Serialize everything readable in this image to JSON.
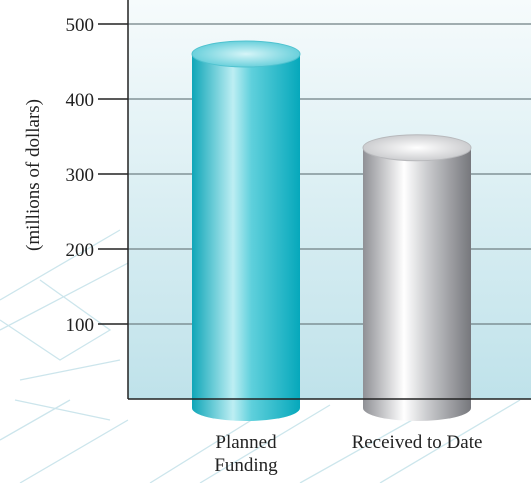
{
  "chart_data": {
    "type": "bar",
    "style": "3d-cylinder",
    "categories": [
      [
        "Planned",
        "Funding"
      ],
      [
        "Received to Date"
      ]
    ],
    "values": [
      460,
      335
    ],
    "ylabel": "(millions of dollars)",
    "ylim": [
      0,
      500
    ],
    "yticks": [
      100,
      200,
      300,
      400,
      500
    ],
    "grid": true,
    "colors": {
      "planned": "#1fb7c8",
      "received": "#a9aaae",
      "plot_bg_top": "#f4fafc",
      "plot_bg_bottom": "#bfe2ea"
    }
  }
}
